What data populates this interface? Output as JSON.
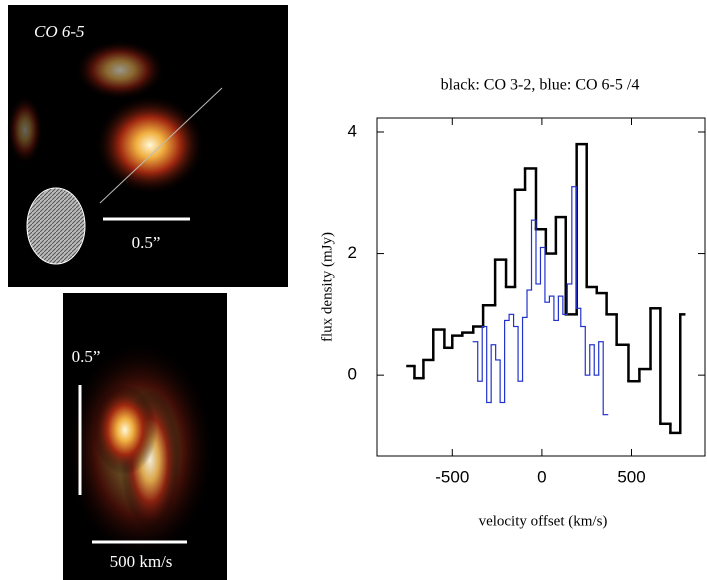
{
  "panels": {
    "map_label": "CO 6-5",
    "map_scale": "0.5”",
    "pv_scale_y": "0.5”",
    "pv_scale_x": "500 km/s"
  },
  "chart_data": {
    "type": "step",
    "title": "black: CO 3-2, blue: CO 6-5 /4",
    "xlabel": "velocity offset (km/s)",
    "ylabel": "flux density (mJy)",
    "xlim": [
      -920,
      910
    ],
    "ylim": [
      -1.33,
      4.23
    ],
    "xticks": [
      -500,
      0,
      500
    ],
    "yticks": [
      0,
      2,
      4
    ],
    "series": [
      {
        "color": "#000000",
        "bins": [
          -750,
          -711,
          -661,
          -606,
          -544,
          -500,
          -444,
          -383,
          -328,
          -261,
          -200,
          -150,
          -94,
          -33,
          22,
          78,
          133,
          194,
          250,
          306,
          361,
          417,
          483,
          544,
          606,
          661,
          717,
          772,
          794
        ],
        "values": [
          0.15,
          -0.05,
          0.25,
          0.75,
          0.45,
          0.65,
          0.7,
          0.8,
          1.15,
          1.9,
          1.45,
          3.05,
          3.4,
          2.4,
          2.0,
          2.6,
          1.0,
          3.8,
          1.45,
          1.35,
          1.0,
          0.5,
          -0.1,
          0.1,
          1.1,
          -0.8,
          -0.95,
          1.0
        ]
      },
      {
        "color": "#2233cc",
        "bins": [
          -383,
          -358,
          -333,
          -308,
          -283,
          -258,
          -233,
          -208,
          -183,
          -158,
          -133,
          -108,
          -83,
          -58,
          -33,
          -8,
          17,
          42,
          67,
          92,
          117,
          142,
          167,
          192,
          217,
          242,
          267,
          292,
          317,
          342,
          367
        ],
        "values": [
          0.55,
          -0.1,
          0.8,
          -0.45,
          0.5,
          0.25,
          -0.45,
          0.9,
          1.0,
          0.8,
          -0.1,
          0.95,
          1.4,
          2.55,
          1.5,
          2.1,
          1.2,
          1.3,
          0.9,
          1.3,
          1.0,
          1.5,
          3.1,
          1.1,
          0.8,
          0.0,
          0.5,
          0.0,
          0.55,
          -0.65
        ]
      }
    ]
  }
}
